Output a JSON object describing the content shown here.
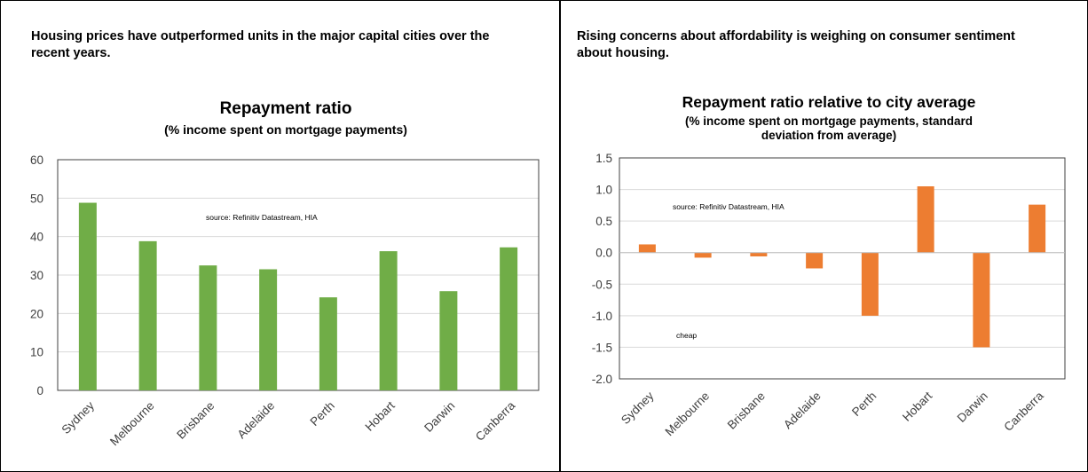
{
  "panels": [
    {
      "headline": "Housing prices have outperformed units in the major capital cities over the recent years."
    },
    {
      "headline": "Rising concerns about affordability is weighing on consumer sentiment about housing."
    }
  ],
  "chart_data": [
    {
      "type": "bar",
      "title": "Repayment ratio",
      "subtitle": "(%  income spent  on mortgage payments)",
      "categories": [
        "Sydney",
        "Melbourne",
        "Brisbane",
        "Adelaide",
        "Perth",
        "Hobart",
        "Darwin",
        "Canberra"
      ],
      "values": [
        48.8,
        38.8,
        32.5,
        31.5,
        24.2,
        36.2,
        25.8,
        37.2
      ],
      "ylim": [
        0,
        60
      ],
      "yticks": [
        "0",
        "10",
        "20",
        "30",
        "40",
        "50",
        "60"
      ],
      "source_note": "source:  Refinitiv Datastream,  HIA",
      "bar_color": "#70ad47",
      "grid": true
    },
    {
      "type": "bar",
      "title": "Repayment ratio relative to city average",
      "subtitle_lines": [
        "(%  income spent  on mortgage payments, standard",
        "deviation from average)"
      ],
      "categories": [
        "Sydney",
        "Melbourne",
        "Brisbane",
        "Adelaide",
        "Perth",
        "Hobart",
        "Darwin",
        "Canberra"
      ],
      "values": [
        0.13,
        -0.08,
        -0.06,
        -0.25,
        -1.0,
        1.05,
        -1.5,
        0.76
      ],
      "ylim": [
        -2.0,
        1.5
      ],
      "yticks": [
        "1.5",
        "1.0",
        "0.5",
        "0.0",
        "-0.5",
        "-1.0",
        "-1.5",
        "-2.0"
      ],
      "source_note": "source:  Refinitiv Datastream,  HIA",
      "annotation": "cheap",
      "bar_color": "#ed7d31",
      "grid": true
    }
  ]
}
